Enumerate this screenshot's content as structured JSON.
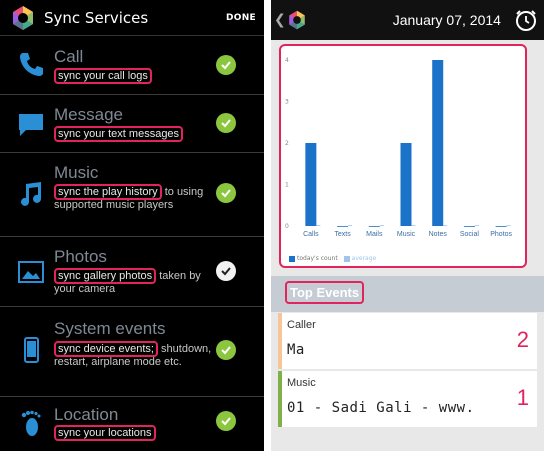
{
  "left": {
    "title": "Sync Services",
    "done_label": "DONE",
    "services": [
      {
        "name": "Call",
        "highlight": "sync your call logs",
        "rest": "",
        "checked": true,
        "icon": "phone-icon"
      },
      {
        "name": "Message",
        "highlight": "sync your text messages",
        "rest": "",
        "checked": true,
        "icon": "message-icon"
      },
      {
        "name": "Music",
        "highlight": "sync the play history",
        "rest": " to using supported music players",
        "checked": true,
        "icon": "music-note-icon"
      },
      {
        "name": "Photos",
        "highlight": "sync gallery photos",
        "rest": " taken by your camera",
        "checked": true,
        "icon": "photo-icon"
      },
      {
        "name": "System events",
        "highlight": "sync device events;",
        "rest": " shutdown, restart, airplane mode etc.",
        "checked": true,
        "icon": "device-icon"
      },
      {
        "name": "Location",
        "highlight": "sync your locations",
        "rest": "",
        "checked": true,
        "icon": "footprint-icon"
      }
    ]
  },
  "right": {
    "date": "January 07, 2014",
    "back_icon": "chevron-left-icon",
    "alarm_icon": "alarm-clock-icon",
    "legend_today": "today's count",
    "legend_average": "average",
    "top_events_label": "Top Events",
    "events": [
      {
        "category": "Caller",
        "value": "Ma",
        "rank": "2",
        "accent": "#f5c69a"
      },
      {
        "category": "Music",
        "value": "01 - Sadi Gali - www.",
        "rank": "1",
        "accent": "#7fb04a"
      }
    ]
  },
  "chart_data": {
    "type": "bar",
    "categories": [
      "Calls",
      "Texts",
      "Mails",
      "Music",
      "Notes",
      "Social",
      "Photos"
    ],
    "series": [
      {
        "name": "today's count",
        "values": [
          2,
          0,
          0,
          2,
          4,
          0,
          0
        ]
      },
      {
        "name": "average",
        "values": [
          0,
          0,
          0,
          0,
          0,
          0,
          0
        ]
      }
    ],
    "yticks": [
      "0",
      "1",
      "2",
      "3",
      "4"
    ],
    "ylim": [
      0,
      4
    ],
    "colors": {
      "today": "#1a73c8",
      "average": "#9ec6ea"
    },
    "grid": false,
    "legend": "bottom-left"
  }
}
